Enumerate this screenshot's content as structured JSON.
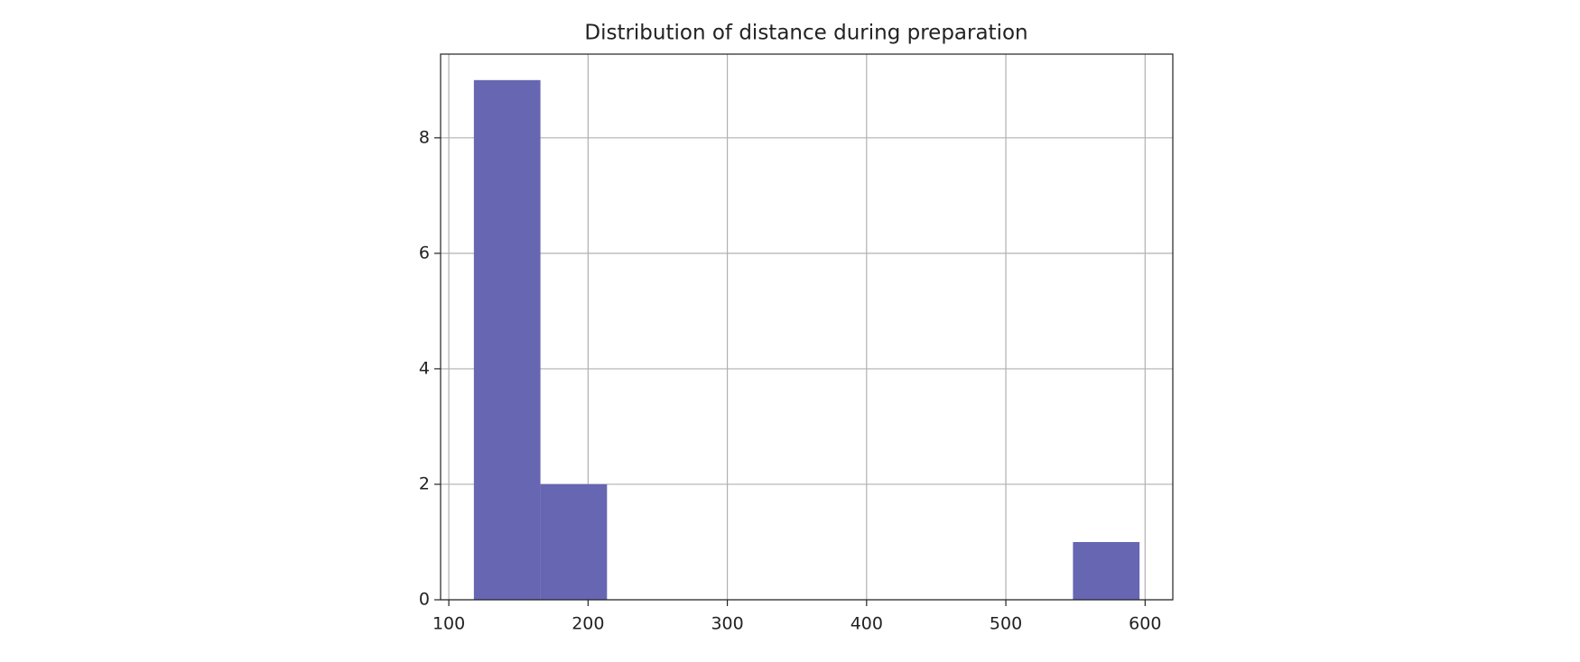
{
  "chart_data": {
    "type": "histogram",
    "title": "Distribution of distance during preparation",
    "bins": [
      118,
      165.8,
      213.6,
      261.4,
      309.2,
      357,
      404.8,
      452.6,
      500.4,
      548.2,
      596
    ],
    "counts": [
      9,
      2,
      0,
      0,
      0,
      0,
      0,
      0,
      0,
      1
    ],
    "color": "#6666b3",
    "xlim": [
      94.1,
      619.9
    ],
    "xticks": [
      100,
      200,
      300,
      400,
      500,
      600
    ],
    "ylim": [
      0,
      9.45
    ],
    "yticks": [
      0,
      2,
      4,
      6,
      8
    ],
    "grid": true
  }
}
